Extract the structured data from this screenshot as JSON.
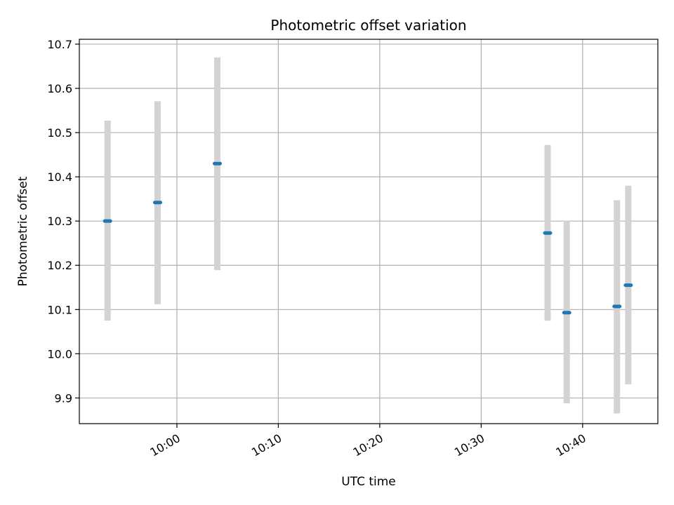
{
  "chart_data": {
    "type": "scatter",
    "title": "Photometric offset variation",
    "xlabel": "UTC time",
    "ylabel": "Photometric offset",
    "x_ticks": [
      "10:00",
      "10:10",
      "10:20",
      "10:30",
      "10:40"
    ],
    "y_ticks": [
      "9.9",
      "10.0",
      "10.1",
      "10.2",
      "10.3",
      "10.4",
      "10.5",
      "10.6",
      "10.7"
    ],
    "xlim": [
      "09:50:23",
      "10:47:25"
    ],
    "ylim": [
      9.842,
      10.711
    ],
    "grid": true,
    "colors": {
      "marker": "#1f77b4",
      "errorbar": "#d3d3d3",
      "grid": "#b0b0b0"
    },
    "points": [
      {
        "time": "09:53:10",
        "value": 10.3,
        "err_low": 10.075,
        "err_high": 10.527
      },
      {
        "time": "09:58:06",
        "value": 10.342,
        "err_low": 10.112,
        "err_high": 10.571
      },
      {
        "time": "10:03:59",
        "value": 10.43,
        "err_low": 10.189,
        "err_high": 10.67
      },
      {
        "time": "10:36:33",
        "value": 10.273,
        "err_low": 10.075,
        "err_high": 10.472
      },
      {
        "time": "10:38:26",
        "value": 10.093,
        "err_low": 9.888,
        "err_high": 10.3
      },
      {
        "time": "10:43:23",
        "value": 10.107,
        "err_low": 9.865,
        "err_high": 10.347
      },
      {
        "time": "10:44:30",
        "value": 10.155,
        "err_low": 9.931,
        "err_high": 10.38
      }
    ]
  }
}
